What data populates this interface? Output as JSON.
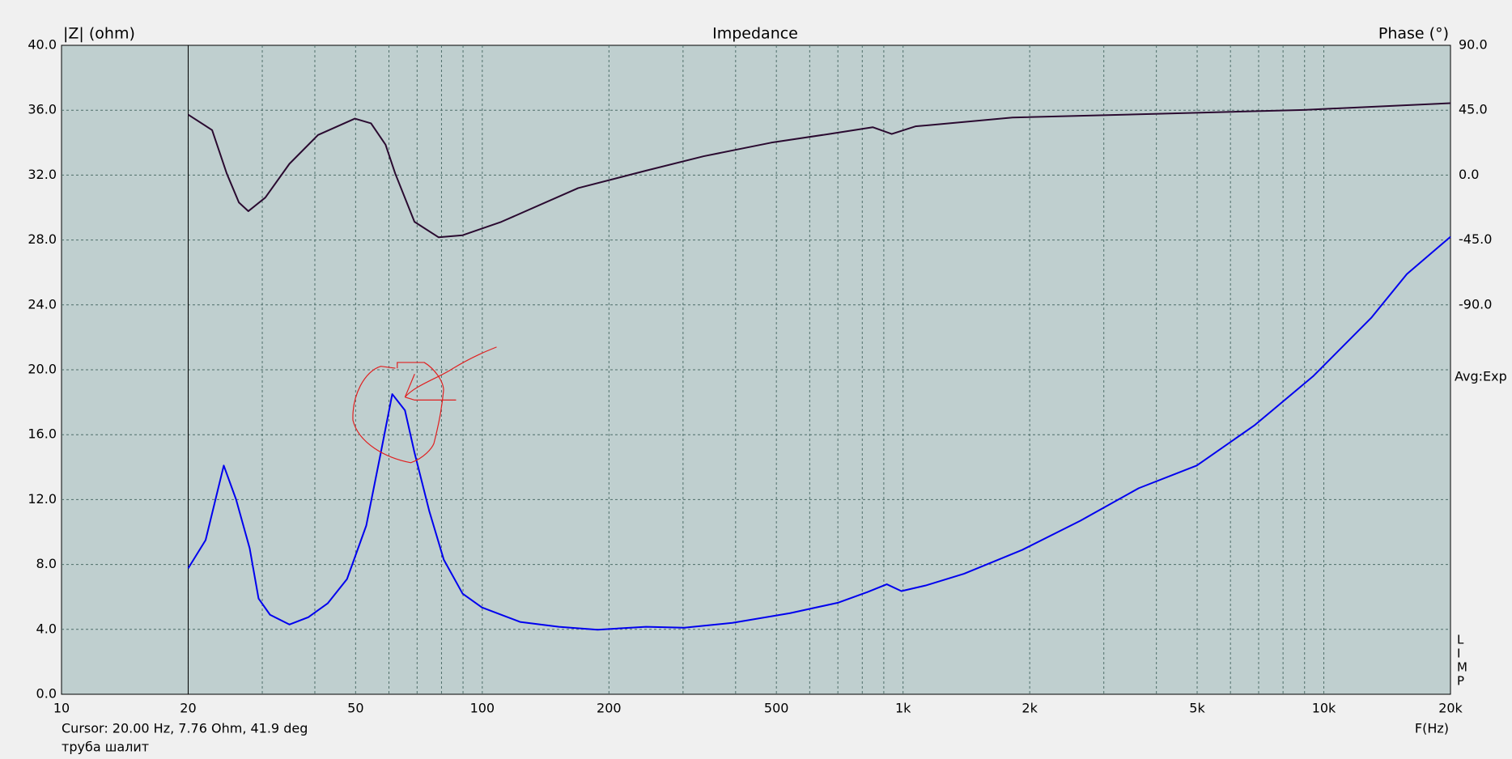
{
  "chart_data": {
    "type": "line",
    "title": "Impedance",
    "ylabel": "|Z| (ohm)",
    "y2label": "Phase (°)",
    "xlabel": "F(Hz)",
    "log_x": true,
    "grid": true,
    "xlim": [
      10,
      20000
    ],
    "xticks": [
      10,
      20,
      50,
      100,
      200,
      500,
      {
        "value": 1000,
        "label": "1k"
      },
      {
        "value": 2000,
        "label": "2k"
      },
      {
        "value": 5000,
        "label": "5k"
      },
      {
        "value": 10000,
        "label": "10k"
      },
      {
        "value": 20000,
        "label": "20k"
      }
    ],
    "x_minor_ticks": [
      30,
      40,
      60,
      70,
      80,
      90,
      300,
      400,
      600,
      700,
      800,
      900,
      3000,
      4000,
      6000,
      7000,
      8000,
      9000
    ],
    "ylim": [
      0,
      40
    ],
    "yticks": [
      {
        "value": 0,
        "label": "0.0"
      },
      {
        "value": 4,
        "label": "4.0"
      },
      {
        "value": 8,
        "label": "8.0"
      },
      {
        "value": 12,
        "label": "12.0"
      },
      {
        "value": 16,
        "label": "16.0"
      },
      {
        "value": 20,
        "label": "20.0"
      },
      {
        "value": 24,
        "label": "24.0"
      },
      {
        "value": 28,
        "label": "28.0"
      },
      {
        "value": 32,
        "label": "32.0"
      },
      {
        "value": 36,
        "label": "36.0"
      },
      {
        "value": 40,
        "label": "40.0"
      }
    ],
    "y2lim": [
      -360,
      90
    ],
    "y2ticks": [
      {
        "value": 90,
        "label": "90.0"
      },
      {
        "value": 45,
        "label": "45.0"
      },
      {
        "value": 0,
        "label": "0.0"
      },
      {
        "value": -45,
        "label": "-45.0"
      },
      {
        "value": -90,
        "label": "-90.0"
      }
    ],
    "cursor": 20,
    "cursor_text": "Cursor: 20.00 Hz, 7.76 Ohm, 41.9 deg",
    "note": "труба шалит",
    "avg_label": "Avg:Exp",
    "program_label": [
      "L",
      "I",
      "M",
      "P"
    ],
    "series": [
      {
        "color": "#0000ee",
        "x": [
          20,
          22,
          24.3,
          26,
          28,
          29.4,
          31.3,
          34.8,
          38.6,
          42.9,
          47.7,
          53,
          57.4,
          61.1,
          65.5,
          69,
          74.8,
          81,
          89.8,
          99.8,
          123,
          152,
          188,
          245,
          302,
          393,
          539,
          702,
          823,
          915,
          991,
          1130,
          1396,
          1920,
          2640,
          3630,
          4990,
          6860,
          9430,
          12960,
          15750,
          20000
        ],
        "values": [
          7.76,
          9.5,
          14.1,
          12,
          9,
          5.9,
          4.9,
          4.3,
          4.75,
          5.6,
          7.1,
          10.4,
          14.9,
          18.5,
          17.5,
          14.9,
          11.3,
          8.3,
          6.2,
          5.35,
          4.46,
          4.16,
          3.98,
          4.16,
          4.1,
          4.4,
          5.0,
          5.65,
          6.3,
          6.78,
          6.36,
          6.7,
          7.43,
          8.9,
          10.7,
          12.7,
          14.1,
          16.6,
          19.6,
          23.2,
          25.9,
          28.2
        ]
      },
      {
        "color": "#2a0a30",
        "axis": "y2",
        "x": [
          20,
          22.8,
          24.7,
          26.4,
          27.8,
          30.5,
          34.8,
          40.7,
          49.8,
          54.4,
          58.9,
          62.1,
          69,
          78.7,
          89.8,
          111,
          169,
          245,
          336,
          486,
          667,
          847,
          940,
          1070,
          1820,
          4040,
          8950,
          20000
        ],
        "values": [
          41.9,
          31.2,
          1.1,
          -19,
          -25,
          -15.6,
          7.8,
          27.8,
          39.2,
          35.9,
          21.1,
          1.1,
          -32.4,
          -43.1,
          -41.7,
          -32.4,
          -9,
          3.1,
          13.1,
          22.5,
          28.5,
          33.2,
          28.5,
          33.8,
          39.9,
          42.5,
          45.2,
          49.9
        ]
      }
    ]
  }
}
